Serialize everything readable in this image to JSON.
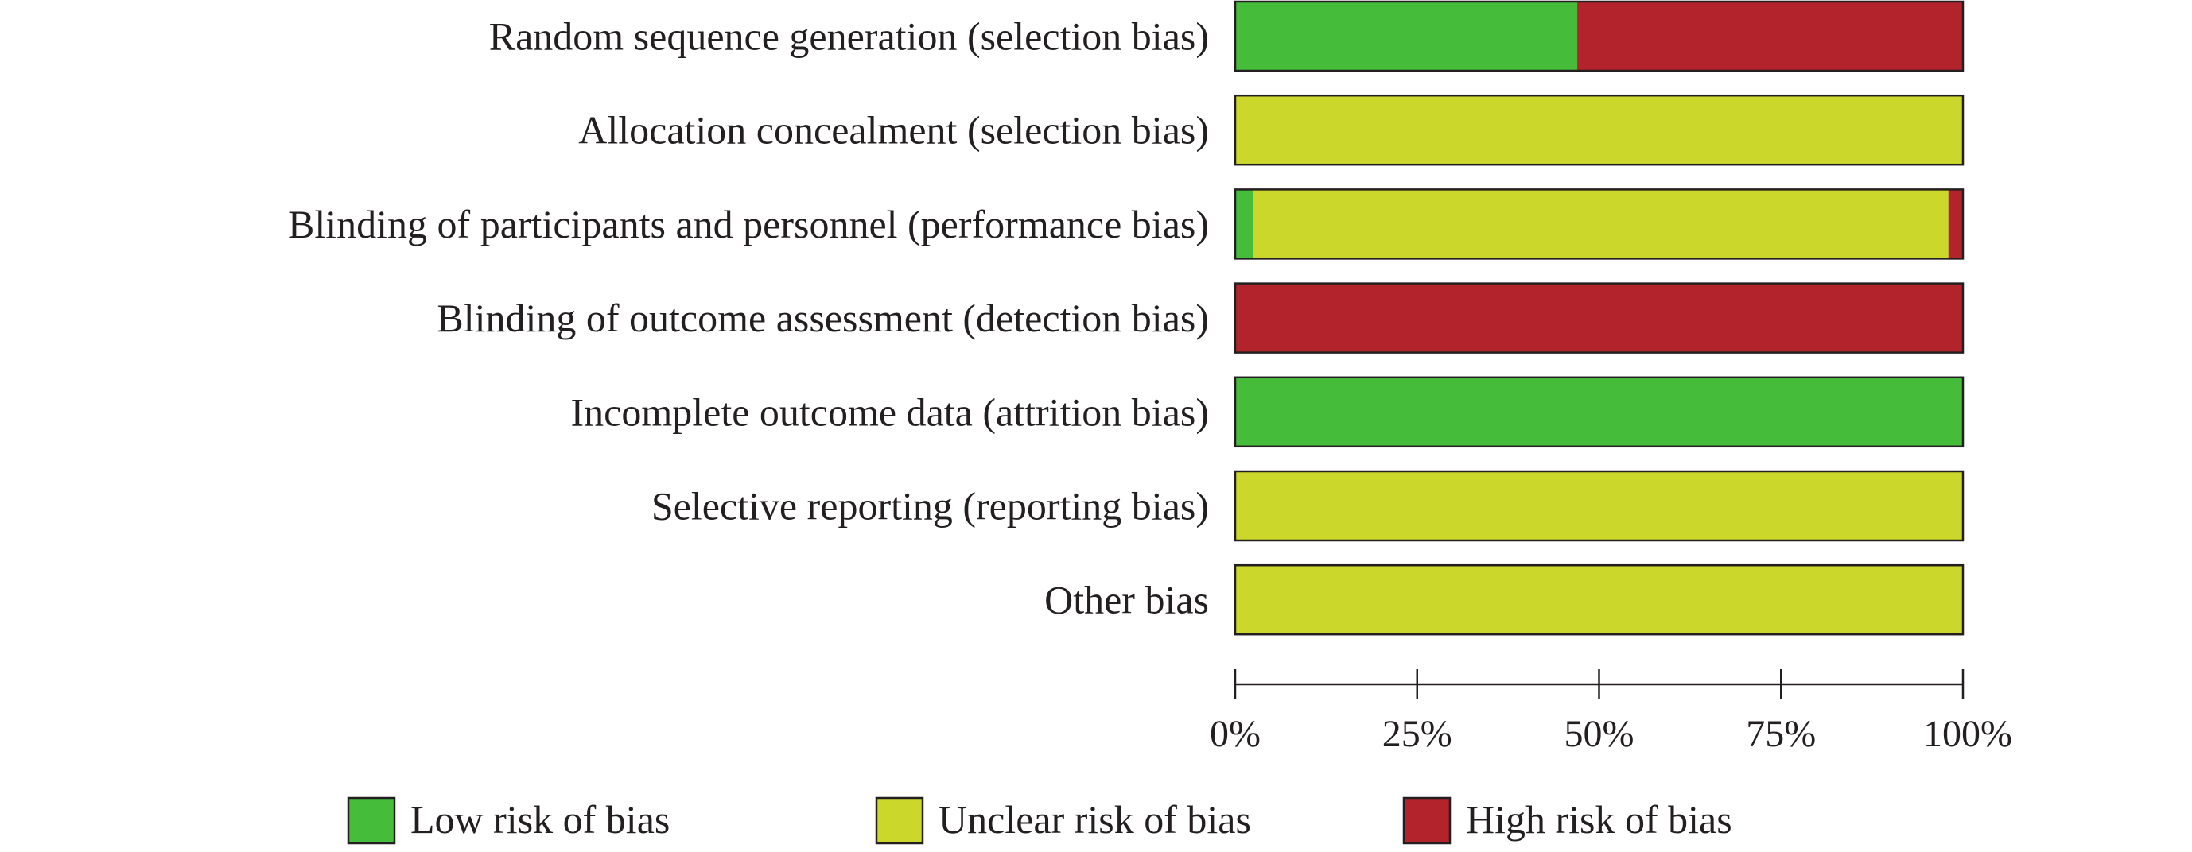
{
  "chart_data": {
    "type": "bar",
    "orientation": "horizontal",
    "stacked": true,
    "categories": [
      "Random sequence generation (selection bias)",
      "Allocation concealment (selection bias)",
      "Blinding of participants and personnel (performance bias)",
      "Blinding of outcome assessment (detection bias)",
      "Incomplete outcome data (attrition bias)",
      "Selective reporting (reporting bias)",
      "Other bias"
    ],
    "series": [
      {
        "name": "Low risk of bias",
        "color": "#45bd3b",
        "values": [
          47,
          0,
          2.5,
          0,
          100,
          0,
          0
        ]
      },
      {
        "name": "Unclear risk of bias",
        "color": "#cbd82b",
        "values": [
          0,
          100,
          95.5,
          0,
          0,
          100,
          100
        ]
      },
      {
        "name": "High risk of bias",
        "color": "#b2232c",
        "values": [
          53,
          0,
          2,
          100,
          0,
          0,
          0
        ]
      }
    ],
    "x_ticks": [
      "0%",
      "25%",
      "50%",
      "75%",
      "100%"
    ],
    "x_tick_values": [
      0,
      25,
      50,
      75,
      100
    ],
    "xlim": [
      0,
      100
    ],
    "grid": false,
    "legend_position": "bottom"
  }
}
